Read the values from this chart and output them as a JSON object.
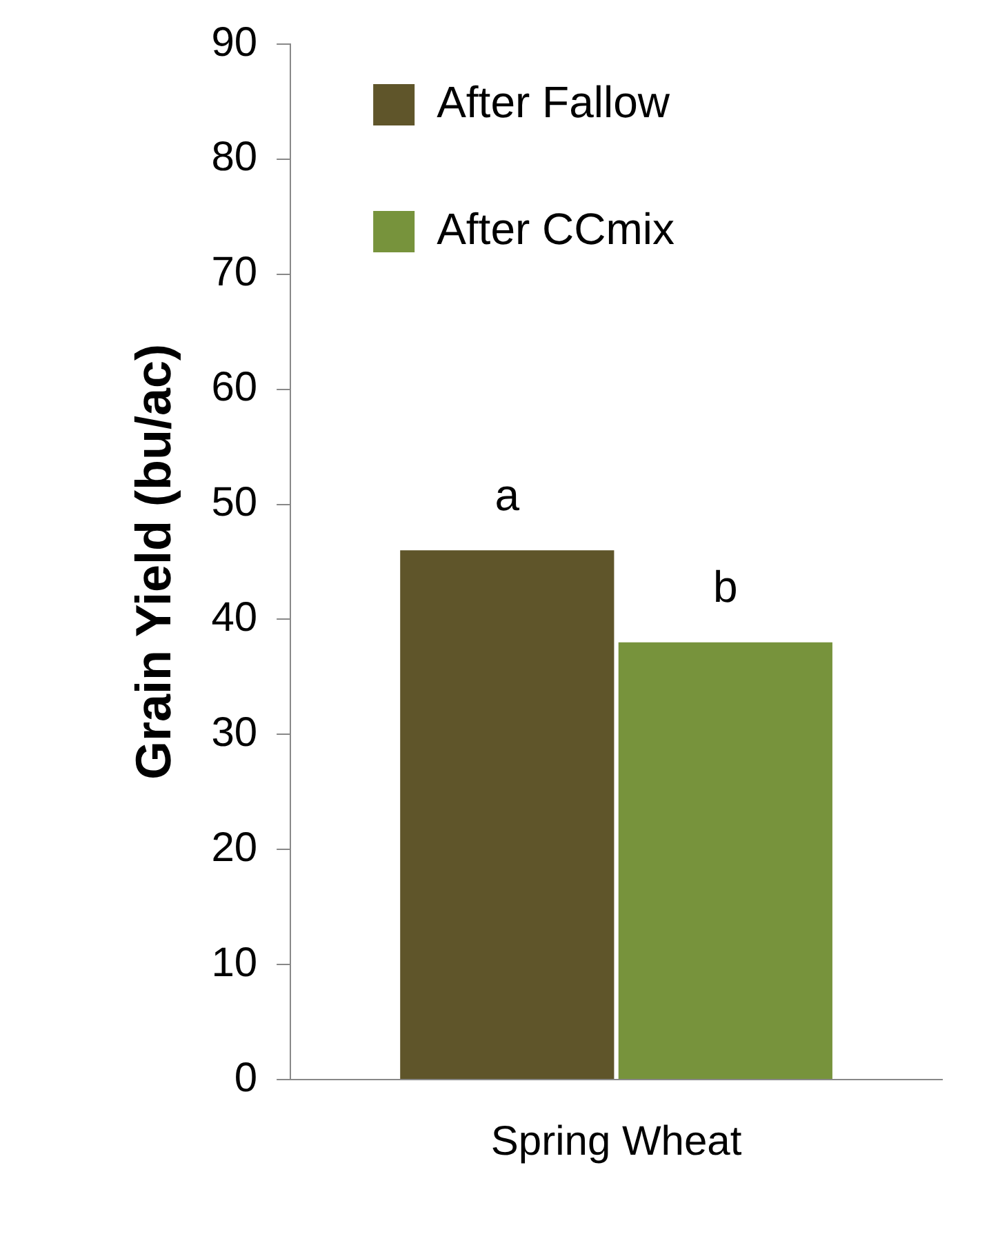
{
  "chart_data": {
    "type": "bar",
    "ylabel": "Grain Yield (bu/ac)",
    "categories": [
      "Spring Wheat"
    ],
    "series": [
      {
        "name": "After Fallow",
        "color": "#5f552a",
        "values": [
          46
        ]
      },
      {
        "name": "After CCmix",
        "color": "#77933c",
        "values": [
          38
        ]
      }
    ],
    "ylim": [
      0,
      90
    ],
    "yticks": [
      0,
      10,
      20,
      30,
      40,
      50,
      60,
      70,
      80,
      90
    ],
    "grid": false,
    "legend": "top left",
    "annotations": [
      "a",
      "b"
    ]
  }
}
